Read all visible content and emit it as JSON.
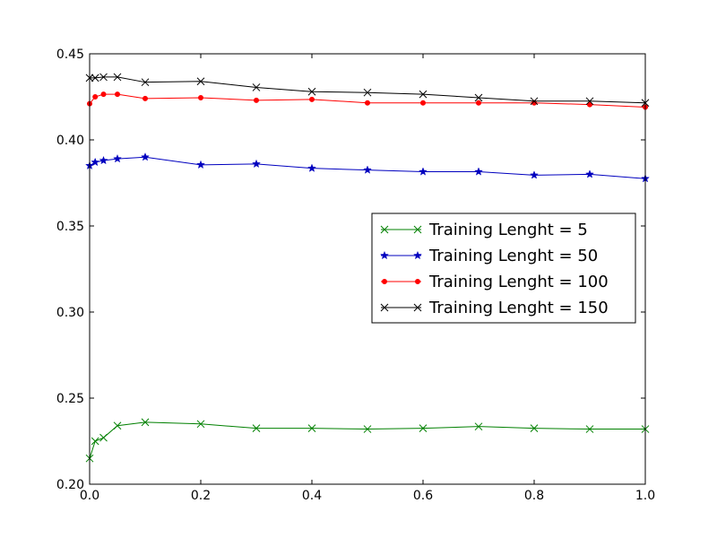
{
  "chart_data": {
    "type": "line",
    "title": "",
    "xlabel": "",
    "ylabel": "",
    "xlim": [
      0.0,
      1.0
    ],
    "ylim": [
      0.2,
      0.45
    ],
    "x": [
      0.0,
      0.01,
      0.025,
      0.05,
      0.1,
      0.2,
      0.3,
      0.4,
      0.5,
      0.6,
      0.7,
      0.8,
      0.9,
      1.0
    ],
    "x_ticks": [
      0.0,
      0.2,
      0.4,
      0.6,
      0.8,
      1.0
    ],
    "x_tick_labels": [
      "0.0",
      "0.2",
      "0.4",
      "0.6",
      "0.8",
      "1.0"
    ],
    "y_ticks": [
      0.2,
      0.25,
      0.3,
      0.35,
      0.4,
      0.45
    ],
    "y_tick_labels": [
      "0.20",
      "0.25",
      "0.30",
      "0.35",
      "0.40",
      "0.45"
    ],
    "grid": false,
    "legend_position": "center-right",
    "series": [
      {
        "name": "Training Lenght = 5",
        "color": "#008000",
        "marker": "x",
        "values": [
          0.215,
          0.225,
          0.227,
          0.234,
          0.236,
          0.235,
          0.2325,
          0.2325,
          0.232,
          0.2325,
          0.2335,
          0.2325,
          0.232,
          0.232
        ]
      },
      {
        "name": "Training Lenght = 50",
        "color": "#0000bf",
        "marker": "star",
        "values": [
          0.385,
          0.387,
          0.388,
          0.389,
          0.39,
          0.3855,
          0.386,
          0.3835,
          0.3825,
          0.3815,
          0.3815,
          0.3795,
          0.38,
          0.3775
        ]
      },
      {
        "name": "Training Lenght = 100",
        "color": "#ff0000",
        "marker": "dot",
        "values": [
          0.421,
          0.425,
          0.4265,
          0.4265,
          0.424,
          0.4245,
          0.423,
          0.4235,
          0.4215,
          0.4215,
          0.4215,
          0.4215,
          0.4205,
          0.419
        ]
      },
      {
        "name": "Training Lenght = 150",
        "color": "#000000",
        "marker": "x",
        "values": [
          0.436,
          0.436,
          0.4365,
          0.4365,
          0.4335,
          0.434,
          0.4305,
          0.428,
          0.4275,
          0.4265,
          0.4245,
          0.4225,
          0.4225,
          0.4215
        ]
      }
    ]
  }
}
